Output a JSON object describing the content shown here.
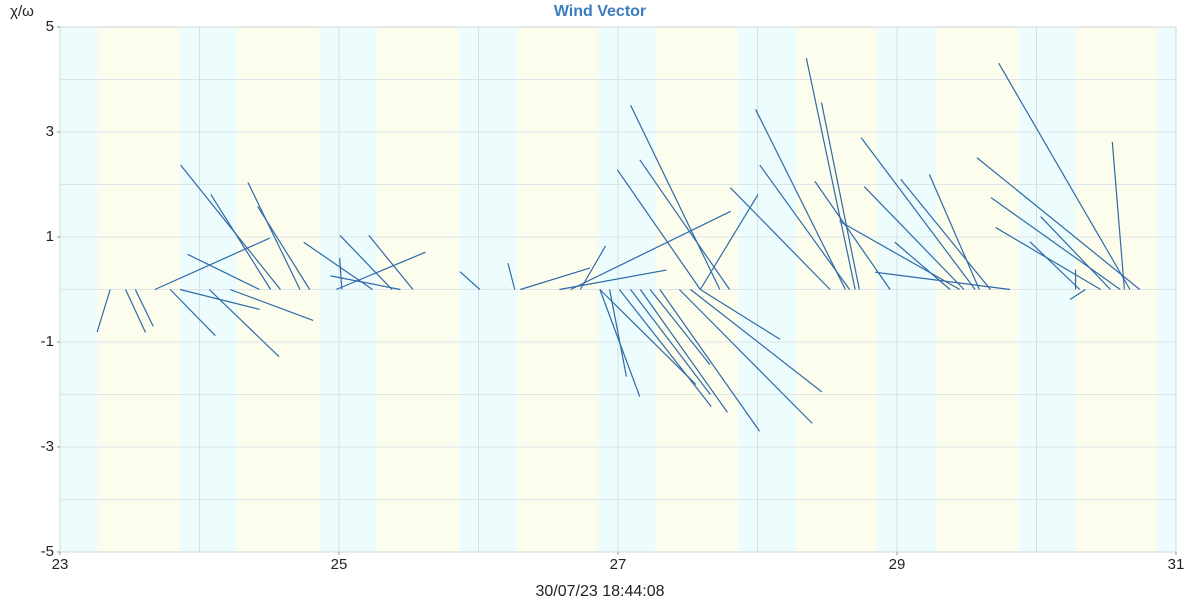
{
  "chart_data": {
    "type": "vector",
    "title": "Wind Vector",
    "ylabel": "χ/ω",
    "footer": "30/07/23 18:44:08",
    "marker": "*",
    "color": "#2f6aa8",
    "xlim": [
      23,
      31
    ],
    "xticks": [
      23,
      25,
      27,
      29,
      31
    ],
    "ylim": [
      -5,
      5
    ],
    "yticks": [
      5,
      3,
      1,
      -1,
      -3,
      -5
    ],
    "xgrid": [
      24,
      25,
      26,
      27,
      28,
      29,
      30
    ],
    "ygrid": [
      -4,
      -3,
      -2,
      -1,
      0,
      1,
      2,
      3,
      4
    ],
    "shading": {
      "colors": [
        "#edfcfc",
        "#fdfdee"
      ],
      "edges": [
        23,
        23.27,
        23.86,
        24.27,
        24.86,
        25.27,
        25.86,
        26.28,
        26.86,
        27.27,
        27.86,
        28.28,
        28.86,
        29.28,
        29.87,
        30.28,
        30.87,
        31
      ]
    },
    "x": [
      24.58,
      24.72,
      24.79,
      24.51,
      23.68,
      24.43,
      23.36,
      23.47,
      23.54,
      23.79,
      24.07,
      24.22,
      23.86,
      25.24,
      25.38,
      25.53,
      24.98,
      25.02,
      25.44,
      26.01,
      26.26,
      26.3,
      27.73,
      27.59,
      27.8,
      26.66,
      26.73,
      26.58,
      26.87,
      26.94,
      27.01,
      27.09,
      27.16,
      27.3,
      27.44,
      27.52,
      27.59,
      27.23,
      26.87,
      28.7,
      28.73,
      28.63,
      28.66,
      28.52,
      27.59,
      29.56,
      29.48,
      28.95,
      29.67,
      29.59,
      29.45,
      29.81,
      29.38,
      30.67,
      30.74,
      30.6,
      30.63,
      30.46,
      30.53,
      30.31,
      30.35,
      30.28
    ],
    "u": [
      -1.9,
      -0.99,
      -0.99,
      -1.14,
      2.19,
      -1.37,
      -0.25,
      0.38,
      0.34,
      0.86,
      1.33,
      1.58,
      1.52,
      -1.31,
      -0.99,
      -0.84,
      1.7,
      -0.04,
      -1.33,
      -0.38,
      -0.13,
      1.33,
      -1.7,
      -1.58,
      -1.71,
      3.05,
      0.48,
      2.04,
      0.76,
      0.32,
      1.75,
      1.52,
      1.66,
      1.9,
      2.53,
      2.5,
      1.52,
      1.14,
      1.83,
      -0.93,
      -0.72,
      -1.71,
      -1.71,
      -1.9,
      1.1,
      -2.17,
      -1.9,
      -1.43,
      -1.71,
      -0.95,
      -2.29,
      -2.57,
      -1.05,
      -2.5,
      -3.1,
      -2.46,
      -0.23,
      -2.0,
      -1.33,
      -0.95,
      -0.29,
      0
    ],
    "v": [
      2.37,
      2.04,
      1.58,
      1.81,
      0.98,
      0.67,
      -0.81,
      -0.82,
      -0.7,
      -0.88,
      -1.28,
      -0.59,
      -0.38,
      0.9,
      1.03,
      1.03,
      0.71,
      0.6,
      0.26,
      0.34,
      0.5,
      0.41,
      3.51,
      2.28,
      2.47,
      1.49,
      0.83,
      0.37,
      -2.04,
      -1.66,
      -2.23,
      -2.0,
      -2.34,
      -2.7,
      -2.55,
      -1.95,
      -0.95,
      -1.43,
      -1.81,
      4.41,
      3.56,
      3.43,
      2.37,
      1.94,
      1.81,
      2.89,
      1.96,
      2.06,
      2.1,
      2.19,
      1.3,
      0.33,
      0.9,
      4.31,
      2.51,
      1.75,
      2.81,
      1.18,
      1.39,
      0.91,
      -0.19,
      0.38
    ]
  }
}
